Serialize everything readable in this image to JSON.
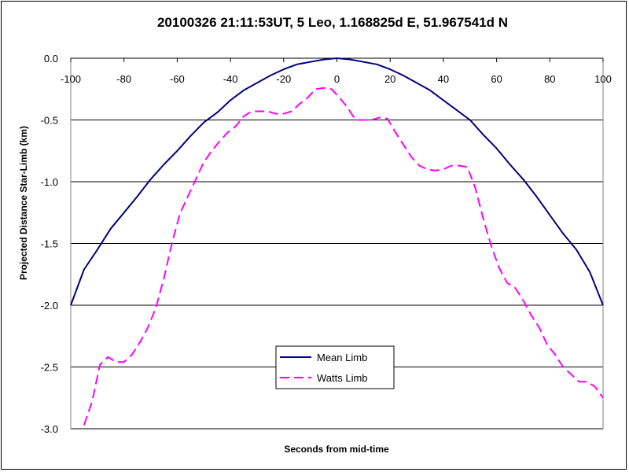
{
  "chart_data": {
    "type": "line",
    "title": "20100326 21:11:53UT, 5 Leo, 1.168825d E, 51.967541d N",
    "xlabel": "Seconds from mid-time",
    "ylabel": "Projected Distance Star-Limb (km)",
    "xlim": [
      -100,
      100
    ],
    "ylim": [
      -3.0,
      0.0
    ],
    "x_ticks": [
      "-100",
      "-80",
      "-60",
      "-40",
      "-20",
      "0",
      "20",
      "40",
      "60",
      "80",
      "100"
    ],
    "y_ticks": [
      "0.0",
      "-0.5",
      "-1.0",
      "-1.5",
      "-2.0",
      "-2.5",
      "-3.0"
    ],
    "grid": "horizontal",
    "legend_position": "bottom-center",
    "series": [
      {
        "name": "Mean Limb",
        "color": "#000080",
        "style": "solid",
        "x": [
          -100,
          -95,
          -90,
          -85,
          -80,
          -75,
          -70,
          -65,
          -60,
          -55,
          -50,
          -45,
          -40,
          -35,
          -30,
          -25,
          -20,
          -15,
          -10,
          -5,
          0,
          5,
          10,
          15,
          20,
          25,
          30,
          35,
          40,
          45,
          50,
          55,
          60,
          65,
          70,
          75,
          80,
          85,
          90,
          95,
          100
        ],
        "y": [
          -2.0,
          -1.71,
          -1.55,
          -1.38,
          -1.25,
          -1.12,
          -0.98,
          -0.86,
          -0.75,
          -0.63,
          -0.52,
          -0.44,
          -0.34,
          -0.26,
          -0.2,
          -0.14,
          -0.09,
          -0.05,
          -0.03,
          -0.01,
          0.0,
          -0.01,
          -0.03,
          -0.05,
          -0.09,
          -0.14,
          -0.2,
          -0.26,
          -0.34,
          -0.42,
          -0.5,
          -0.62,
          -0.73,
          -0.86,
          -0.98,
          -1.12,
          -1.27,
          -1.42,
          -1.55,
          -1.73,
          -2.0
        ]
      },
      {
        "name": "Watts Limb",
        "color": "#FF00FF",
        "style": "dashed",
        "x": [
          -95,
          -92,
          -89,
          -86,
          -83,
          -80,
          -77,
          -74,
          -71,
          -68,
          -65,
          -62,
          -59,
          -56,
          -53,
          -50,
          -47,
          -44,
          -41,
          -38,
          -35,
          -32,
          -29,
          -26,
          -23,
          -20,
          -17,
          -14,
          -11,
          -8,
          -5,
          -2,
          1,
          4,
          7,
          10,
          13,
          16,
          19,
          22,
          25,
          28,
          31,
          34,
          37,
          40,
          43,
          46,
          49,
          52,
          55,
          58,
          61,
          64,
          67,
          70,
          73,
          76,
          79,
          82,
          85,
          88,
          91,
          94,
          97,
          100
        ],
        "y": [
          -2.97,
          -2.78,
          -2.48,
          -2.42,
          -2.46,
          -2.46,
          -2.4,
          -2.3,
          -2.18,
          -2.02,
          -1.78,
          -1.5,
          -1.26,
          -1.12,
          -0.98,
          -0.84,
          -0.75,
          -0.67,
          -0.6,
          -0.55,
          -0.47,
          -0.43,
          -0.43,
          -0.43,
          -0.45,
          -0.45,
          -0.43,
          -0.37,
          -0.32,
          -0.25,
          -0.24,
          -0.25,
          -0.32,
          -0.4,
          -0.5,
          -0.5,
          -0.5,
          -0.48,
          -0.49,
          -0.6,
          -0.7,
          -0.8,
          -0.87,
          -0.9,
          -0.91,
          -0.9,
          -0.87,
          -0.87,
          -0.88,
          -1.05,
          -1.3,
          -1.52,
          -1.7,
          -1.82,
          -1.86,
          -1.96,
          -2.08,
          -2.18,
          -2.32,
          -2.4,
          -2.5,
          -2.56,
          -2.62,
          -2.62,
          -2.66,
          -2.75
        ]
      }
    ]
  }
}
